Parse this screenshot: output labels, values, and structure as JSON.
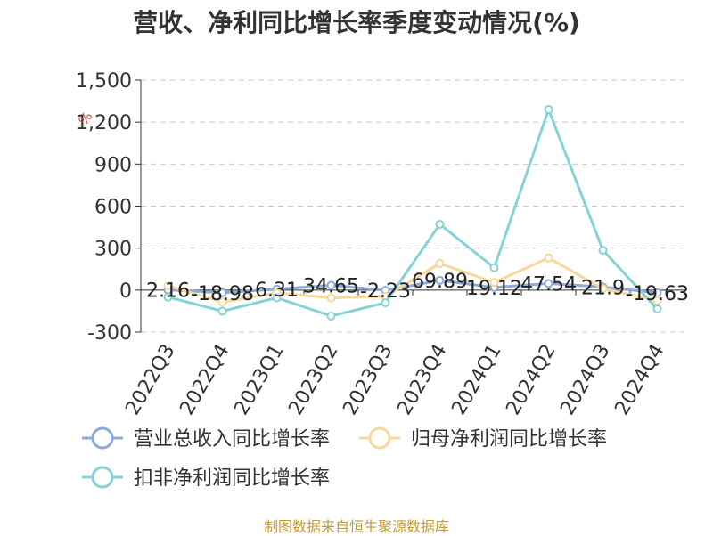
{
  "title": "营收、净利同比增长率季度变动情况(%)",
  "source": "制图数据来自恒生聚源数据库",
  "chart_data": {
    "type": "line",
    "unit_label": "%",
    "categories": [
      "2022Q3",
      "2022Q4",
      "2023Q1",
      "2023Q2",
      "2023Q3",
      "2023Q4",
      "2024Q1",
      "2024Q2",
      "2024Q3",
      "2024Q4"
    ],
    "ylim": [
      -300,
      1500
    ],
    "yticks": [
      "1,500",
      "1,200",
      "900",
      "600",
      "300",
      "0",
      "-300"
    ],
    "ytick_values": [
      1500,
      1200,
      900,
      600,
      300,
      0,
      -300
    ],
    "grid": true,
    "legend_position": "bottom",
    "series": [
      {
        "name": "营业总收入同比增长率",
        "color": "#8fa9d9",
        "values": [
          2.16,
          -18.98,
          6.31,
          34.65,
          -2.23,
          69.89,
          19.12,
          47.54,
          21.9,
          -19.63
        ],
        "labels": [
          "2.16",
          "-18.98",
          "6.31",
          "34.65",
          "-2.23",
          "69.89",
          "19.12",
          "47.54",
          "21.9",
          "-19.63"
        ]
      },
      {
        "name": "归母净利润同比增长率",
        "color": "#f8d898",
        "values": [
          30,
          -85,
          -20,
          -55,
          -45,
          190,
          55,
          230,
          10,
          -75
        ]
      },
      {
        "name": "扣非净利润同比增长率",
        "color": "#86d3d6",
        "values": [
          -50,
          -150,
          -55,
          -185,
          -90,
          470,
          160,
          1290,
          285,
          -135
        ]
      }
    ]
  }
}
